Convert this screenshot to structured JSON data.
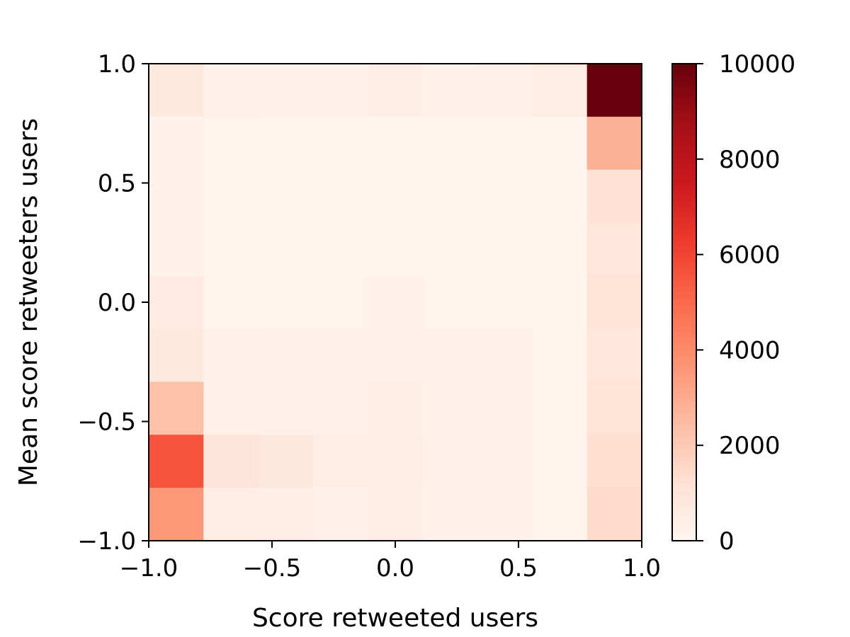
{
  "chart_data": {
    "type": "heatmap",
    "title": "",
    "xlabel": "Score retweeted users",
    "ylabel": "Mean score retweeters users",
    "xlim": [
      -1.0,
      1.0
    ],
    "ylim": [
      -1.0,
      1.0
    ],
    "bins": 9,
    "x_edges": [
      -1.0,
      -0.7778,
      -0.5556,
      -0.3333,
      -0.1111,
      0.1111,
      0.3333,
      0.5556,
      0.7778,
      1.0
    ],
    "y_edges": [
      -1.0,
      -0.7778,
      -0.5556,
      -0.3333,
      -0.1111,
      0.1111,
      0.3333,
      0.5556,
      0.7778,
      1.0
    ],
    "x_ticks": [
      -1.0,
      -0.5,
      0.0,
      0.5,
      1.0
    ],
    "x_tick_labels": [
      "−1.0",
      "−0.5",
      "0.0",
      "0.5",
      "1.0"
    ],
    "y_ticks": [
      -1.0,
      -0.5,
      0.0,
      0.5,
      1.0
    ],
    "y_tick_labels": [
      "−1.0",
      "−0.5",
      "0.0",
      "0.5",
      "1.0"
    ],
    "counts_rows_top_to_bottom": [
      [
        700,
        200,
        200,
        200,
        400,
        200,
        300,
        500,
        10000
      ],
      [
        150,
        100,
        80,
        80,
        80,
        80,
        80,
        80,
        2800
      ],
      [
        200,
        100,
        80,
        80,
        80,
        80,
        80,
        80,
        1200
      ],
      [
        200,
        100,
        80,
        80,
        80,
        80,
        80,
        80,
        900
      ],
      [
        600,
        120,
        120,
        120,
        150,
        100,
        80,
        80,
        1100
      ],
      [
        700,
        200,
        250,
        300,
        300,
        200,
        150,
        100,
        900
      ],
      [
        2300,
        300,
        350,
        300,
        400,
        200,
        150,
        100,
        1100
      ],
      [
        5600,
        1000,
        800,
        500,
        500,
        300,
        150,
        100,
        1300
      ],
      [
        3600,
        500,
        400,
        300,
        400,
        200,
        150,
        100,
        1400
      ]
    ],
    "colormap": "Reds",
    "colormap_stops": [
      "#fff5f0",
      "#fee0d2",
      "#fcbba1",
      "#fc9272",
      "#fb6a4a",
      "#ef3b2c",
      "#cb181d",
      "#a50f15",
      "#67000d"
    ],
    "colorbar": {
      "vmin": 0,
      "vmax": 10000,
      "ticks": [
        0,
        2000,
        4000,
        6000,
        8000,
        10000
      ],
      "tick_labels": [
        "0",
        "2000",
        "4000",
        "6000",
        "8000",
        "10000"
      ]
    },
    "grid": false,
    "legend": "none"
  }
}
